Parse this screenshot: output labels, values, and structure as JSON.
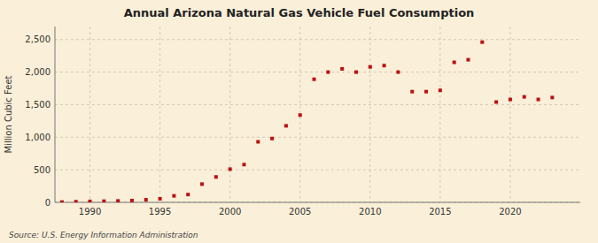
{
  "chart_data": {
    "type": "scatter",
    "title": "Annual Arizona Natural Gas Vehicle Fuel Consumption",
    "ylabel": "Million Cubic Feet",
    "source": "Source: U.S. Energy Information Administration",
    "color": "#bb1111",
    "marker": "square",
    "x": [
      1988,
      1989,
      1990,
      1991,
      1992,
      1993,
      1994,
      1995,
      1996,
      1997,
      1998,
      1999,
      2000,
      2001,
      2002,
      2003,
      2004,
      2005,
      2006,
      2007,
      2008,
      2009,
      2010,
      2011,
      2012,
      2013,
      2014,
      2015,
      2016,
      2017,
      2018,
      2019,
      2020,
      2021,
      2022,
      2023
    ],
    "values": [
      5,
      10,
      15,
      18,
      22,
      28,
      40,
      55,
      100,
      120,
      280,
      390,
      510,
      580,
      930,
      980,
      1175,
      1340,
      1890,
      2000,
      2050,
      2000,
      2080,
      2100,
      2000,
      1700,
      1700,
      1720,
      2150,
      2190,
      2460,
      1540,
      1580,
      1620,
      1580,
      1610
    ],
    "xlim": [
      1987.5,
      2025
    ],
    "xticks": [
      1990,
      1995,
      2000,
      2005,
      2010,
      2015,
      2020
    ],
    "ylim": [
      0,
      2700
    ],
    "yticks": [
      0,
      500,
      {
        "value": 1000,
        "label": "1,000"
      },
      {
        "value": 1500,
        "label": "1,500"
      },
      {
        "value": 2000,
        "label": "2,000"
      },
      {
        "value": 2500,
        "label": "2,500"
      }
    ],
    "grid": true
  }
}
